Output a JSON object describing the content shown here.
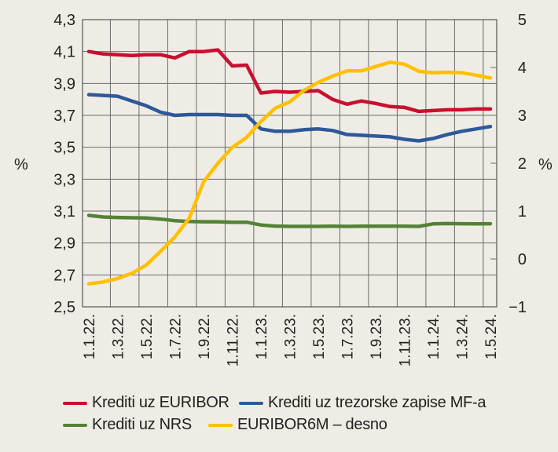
{
  "chart_data": {
    "type": "line",
    "title": "",
    "xlabel": "",
    "ylabel_left": "%",
    "ylabel_right": "%",
    "ylim_left": [
      2.5,
      4.3
    ],
    "ylim_right": [
      -1,
      5
    ],
    "grid": true,
    "legend_position": "bottom",
    "left_ticks": [
      "4,3",
      "4,1",
      "3,9",
      "3,7",
      "3,5",
      "3,3",
      "3,1",
      "2,9",
      "2,7",
      "2,5"
    ],
    "left_tick_values": [
      4.3,
      4.1,
      3.9,
      3.7,
      3.5,
      3.3,
      3.1,
      2.9,
      2.7,
      2.5
    ],
    "right_ticks": [
      "5",
      "4",
      "3",
      "2",
      "1",
      "0",
      "−1"
    ],
    "right_tick_values": [
      5,
      4,
      3,
      2,
      1,
      0,
      -1
    ],
    "x_ticks": [
      "1.1.22.",
      "1.3.22.",
      "1.5.22.",
      "1.7.22.",
      "1.9.22.",
      "1.11.22.",
      "1.1.23.",
      "1.3.23.",
      "1.5.23.",
      "1.7.23.",
      "1.9.23.",
      "1.11.23.",
      "1.1.24.",
      "1.3.24.",
      "1.5.24."
    ],
    "x": [
      "1.22",
      "2.22",
      "3.22",
      "4.22",
      "5.22",
      "6.22",
      "7.22",
      "8.22",
      "9.22",
      "10.22",
      "11.22",
      "12.22",
      "1.23",
      "2.23",
      "3.23",
      "4.23",
      "5.23",
      "6.23",
      "7.23",
      "8.23",
      "9.23",
      "10.23",
      "11.23",
      "12.23",
      "1.24",
      "2.24",
      "3.24",
      "4.24",
      "5.24"
    ],
    "series": [
      {
        "name": "Krediti uz EURIBOR",
        "axis": "left",
        "color": "#c8102e",
        "values": [
          4.1,
          4.085,
          4.08,
          4.075,
          4.08,
          4.08,
          4.06,
          4.1,
          4.1,
          4.11,
          4.01,
          4.015,
          3.84,
          3.85,
          3.845,
          3.85,
          3.855,
          3.8,
          3.77,
          3.79,
          3.775,
          3.755,
          3.75,
          3.725,
          3.73,
          3.735,
          3.735,
          3.74,
          3.74
        ]
      },
      {
        "name": "Krediti uz trezorske zapise MF-a",
        "axis": "left",
        "color": "#2e5899",
        "values": [
          3.83,
          3.825,
          3.82,
          3.79,
          3.76,
          3.72,
          3.7,
          3.705,
          3.705,
          3.705,
          3.7,
          3.7,
          3.615,
          3.6,
          3.6,
          3.61,
          3.615,
          3.605,
          3.58,
          3.575,
          3.57,
          3.565,
          3.55,
          3.54,
          3.555,
          3.58,
          3.6,
          3.615,
          3.63
        ]
      },
      {
        "name": "Krediti uz NRS",
        "axis": "left",
        "color": "#548235",
        "values": [
          3.073,
          3.063,
          3.06,
          3.058,
          3.057,
          3.05,
          3.04,
          3.035,
          3.033,
          3.033,
          3.03,
          3.03,
          3.013,
          3.006,
          3.004,
          3.004,
          3.004,
          3.005,
          3.004,
          3.005,
          3.005,
          3.005,
          3.005,
          3.004,
          3.02,
          3.022,
          3.021,
          3.02,
          3.021
        ]
      },
      {
        "name": "EURIBOR6M – desno",
        "axis": "right",
        "color": "#ffc000",
        "values": [
          -0.52,
          -0.48,
          -0.41,
          -0.3,
          -0.13,
          0.16,
          0.46,
          0.85,
          1.61,
          2.0,
          2.33,
          2.54,
          2.87,
          3.15,
          3.28,
          3.52,
          3.69,
          3.82,
          3.93,
          3.93,
          4.02,
          4.11,
          4.07,
          3.92,
          3.89,
          3.9,
          3.89,
          3.84,
          3.78
        ]
      }
    ]
  },
  "legend": [
    {
      "label": "Krediti uz EURIBOR",
      "color": "#c8102e"
    },
    {
      "label": "Krediti uz trezorske zapise MF-a",
      "color": "#2e5899"
    },
    {
      "label": "Krediti uz NRS",
      "color": "#548235"
    },
    {
      "label": "EURIBOR6M – desno",
      "color": "#ffc000"
    }
  ]
}
